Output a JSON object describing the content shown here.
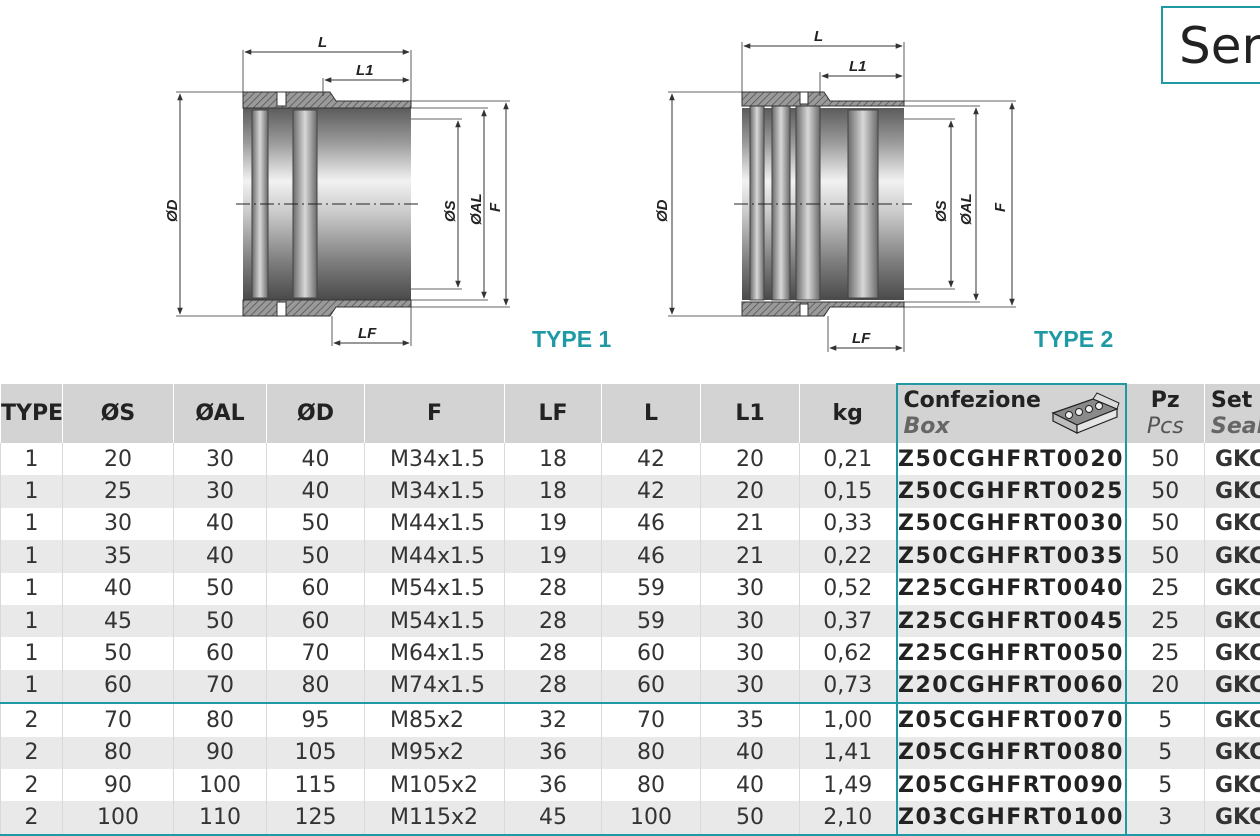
{
  "series_title": "Serie CGH",
  "drawings": {
    "type1_label": "TYPE 1",
    "type2_label": "TYPE 2",
    "dim_L": "L",
    "dim_L1": "L1",
    "dim_LF": "LF",
    "dim_D": "ØD",
    "dim_S": "ØS",
    "dim_AL": "ØAL",
    "dim_F": "F"
  },
  "table": {
    "headers": {
      "type": "TYPE",
      "s": "ØS",
      "al": "ØAL",
      "d": "ØD",
      "f": "F",
      "lf": "LF",
      "l": "L",
      "l1": "L1",
      "kg": "kg",
      "box": "Confezione",
      "box_sub": "Box",
      "pz": "Pz",
      "pz_sub": "Pcs",
      "set": "Set g",
      "set_sub": "Seal"
    },
    "rows": [
      {
        "type": "1",
        "s": "20",
        "al": "30",
        "d": "40",
        "f": "M34x1.5",
        "lf": "18",
        "l": "42",
        "l1": "20",
        "kg": "0,21",
        "code": "Z50CGHFRT0020",
        "pz": "50",
        "set": "GKC"
      },
      {
        "type": "1",
        "s": "25",
        "al": "30",
        "d": "40",
        "f": "M34x1.5",
        "lf": "18",
        "l": "42",
        "l1": "20",
        "kg": "0,15",
        "code": "Z50CGHFRT0025",
        "pz": "50",
        "set": "GKC"
      },
      {
        "type": "1",
        "s": "30",
        "al": "40",
        "d": "50",
        "f": "M44x1.5",
        "lf": "19",
        "l": "46",
        "l1": "21",
        "kg": "0,33",
        "code": "Z50CGHFRT0030",
        "pz": "50",
        "set": "GKC"
      },
      {
        "type": "1",
        "s": "35",
        "al": "40",
        "d": "50",
        "f": "M44x1.5",
        "lf": "19",
        "l": "46",
        "l1": "21",
        "kg": "0,22",
        "code": "Z50CGHFRT0035",
        "pz": "50",
        "set": "GKC"
      },
      {
        "type": "1",
        "s": "40",
        "al": "50",
        "d": "60",
        "f": "M54x1.5",
        "lf": "28",
        "l": "59",
        "l1": "30",
        "kg": "0,52",
        "code": "Z25CGHFRT0040",
        "pz": "25",
        "set": "GKC"
      },
      {
        "type": "1",
        "s": "45",
        "al": "50",
        "d": "60",
        "f": "M54x1.5",
        "lf": "28",
        "l": "59",
        "l1": "30",
        "kg": "0,37",
        "code": "Z25CGHFRT0045",
        "pz": "25",
        "set": "GKC"
      },
      {
        "type": "1",
        "s": "50",
        "al": "60",
        "d": "70",
        "f": "M64x1.5",
        "lf": "28",
        "l": "60",
        "l1": "30",
        "kg": "0,62",
        "code": "Z25CGHFRT0050",
        "pz": "25",
        "set": "GKC"
      },
      {
        "type": "1",
        "s": "60",
        "al": "70",
        "d": "80",
        "f": "M74x1.5",
        "lf": "28",
        "l": "60",
        "l1": "30",
        "kg": "0,73",
        "code": "Z20CGHFRT0060",
        "pz": "20",
        "set": "GKC"
      },
      {
        "type": "2",
        "s": "70",
        "al": "80",
        "d": "95",
        "f": "M85x2",
        "lf": "32",
        "l": "70",
        "l1": "35",
        "kg": "1,00",
        "code": "Z05CGHFRT0070",
        "pz": "5",
        "set": "GKC"
      },
      {
        "type": "2",
        "s": "80",
        "al": "90",
        "d": "105",
        "f": "M95x2",
        "lf": "36",
        "l": "80",
        "l1": "40",
        "kg": "1,41",
        "code": "Z05CGHFRT0080",
        "pz": "5",
        "set": "GKC"
      },
      {
        "type": "2",
        "s": "90",
        "al": "100",
        "d": "115",
        "f": "M105x2",
        "lf": "36",
        "l": "80",
        "l1": "40",
        "kg": "1,49",
        "code": "Z05CGHFRT0090",
        "pz": "5",
        "set": "GKC"
      },
      {
        "type": "2",
        "s": "100",
        "al": "110",
        "d": "125",
        "f": "M115x2",
        "lf": "45",
        "l": "100",
        "l1": "50",
        "kg": "2,10",
        "code": "Z03CGHFRT0100",
        "pz": "3",
        "set": "GKC"
      }
    ]
  }
}
